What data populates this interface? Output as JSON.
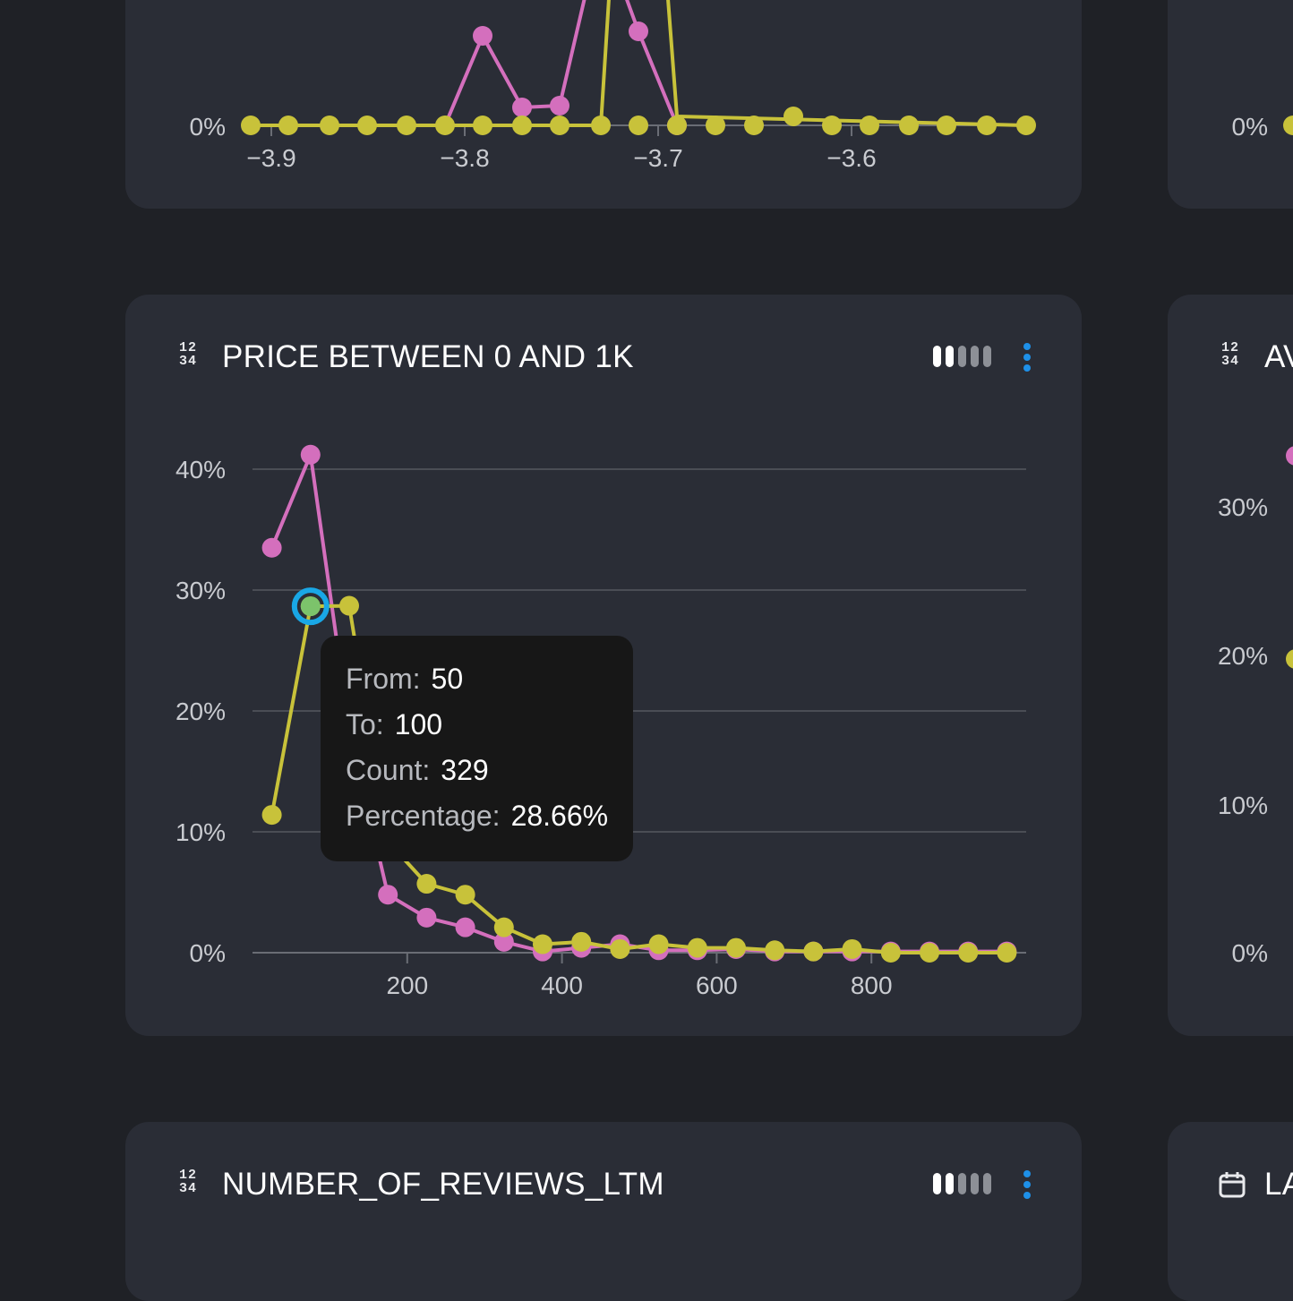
{
  "top_card": {
    "x_ticks": [
      "−3.9",
      "−3.8",
      "−3.7",
      "−3.6"
    ],
    "y_tick": "0%"
  },
  "price_card": {
    "title": "PRICE BETWEEN 0 AND 1K",
    "type_icon_digits": [
      "12",
      "34"
    ],
    "type_icon": "numeric-type-icon",
    "view_icon": "bars-toggle-icon",
    "menu_icon": "kebab-menu-icon"
  },
  "chart_data": {
    "type": "line",
    "xlim": [
      0,
      1000
    ],
    "ylim": [
      0,
      40
    ],
    "x_ticks": [
      "200",
      "400",
      "600",
      "800"
    ],
    "y_ticks": [
      "0%",
      "10%",
      "20%",
      "30%",
      "40%"
    ],
    "series": [
      {
        "color": "#d46fbd",
        "x": [
          25,
          75,
          125,
          175,
          225,
          275,
          325,
          375,
          425,
          475,
          525,
          575,
          625,
          675,
          725,
          775,
          825,
          875,
          925,
          975
        ],
        "values": [
          33.5,
          41.2,
          18.5,
          4.8,
          2.9,
          2.1,
          0.9,
          0.1,
          0.4,
          0.7,
          0.2,
          0.2,
          0.3,
          0.1,
          0.1,
          0.1,
          0.1,
          0.1,
          0.1,
          0.1
        ]
      },
      {
        "color": "#c8c23a",
        "x": [
          25,
          75,
          125,
          175,
          225,
          275,
          325,
          375,
          425,
          475,
          525,
          575,
          625,
          675,
          725,
          775,
          825,
          875,
          925,
          975
        ],
        "values": [
          11.4,
          28.66,
          28.7,
          9.2,
          5.7,
          4.8,
          2.1,
          0.7,
          0.9,
          0.3,
          0.7,
          0.4,
          0.4,
          0.2,
          0.1,
          0.3,
          0.0,
          0.0,
          0.0,
          0.0
        ]
      }
    ],
    "highlight": {
      "series": 1,
      "index": 1
    }
  },
  "tooltip": {
    "rows": [
      {
        "key": "From:",
        "value": "50"
      },
      {
        "key": "To:",
        "value": "100"
      },
      {
        "key": "Count:",
        "value": "329"
      },
      {
        "key": "Percentage:",
        "value": "28.66%"
      }
    ]
  },
  "right_card_partial": {
    "title_partial": "AV",
    "type_icon_digits": [
      "12",
      "34"
    ],
    "y_ticks": [
      "0%",
      "10%",
      "20%",
      "30%"
    ],
    "top_y_tick": "0%"
  },
  "reviews_card": {
    "title": "NUMBER_OF_REVIEWS_LTM",
    "type_icon_digits": [
      "12",
      "34"
    ]
  },
  "bottom_right_partial": {
    "title_partial": "LA",
    "type_icon": "calendar-icon"
  },
  "colors": {
    "pink": "#d46fbd",
    "yellow": "#c8c23a",
    "highlight_ring": "#19a7e6",
    "highlight_fill": "#7cc36b",
    "accent_blue": "#1e90e8"
  }
}
